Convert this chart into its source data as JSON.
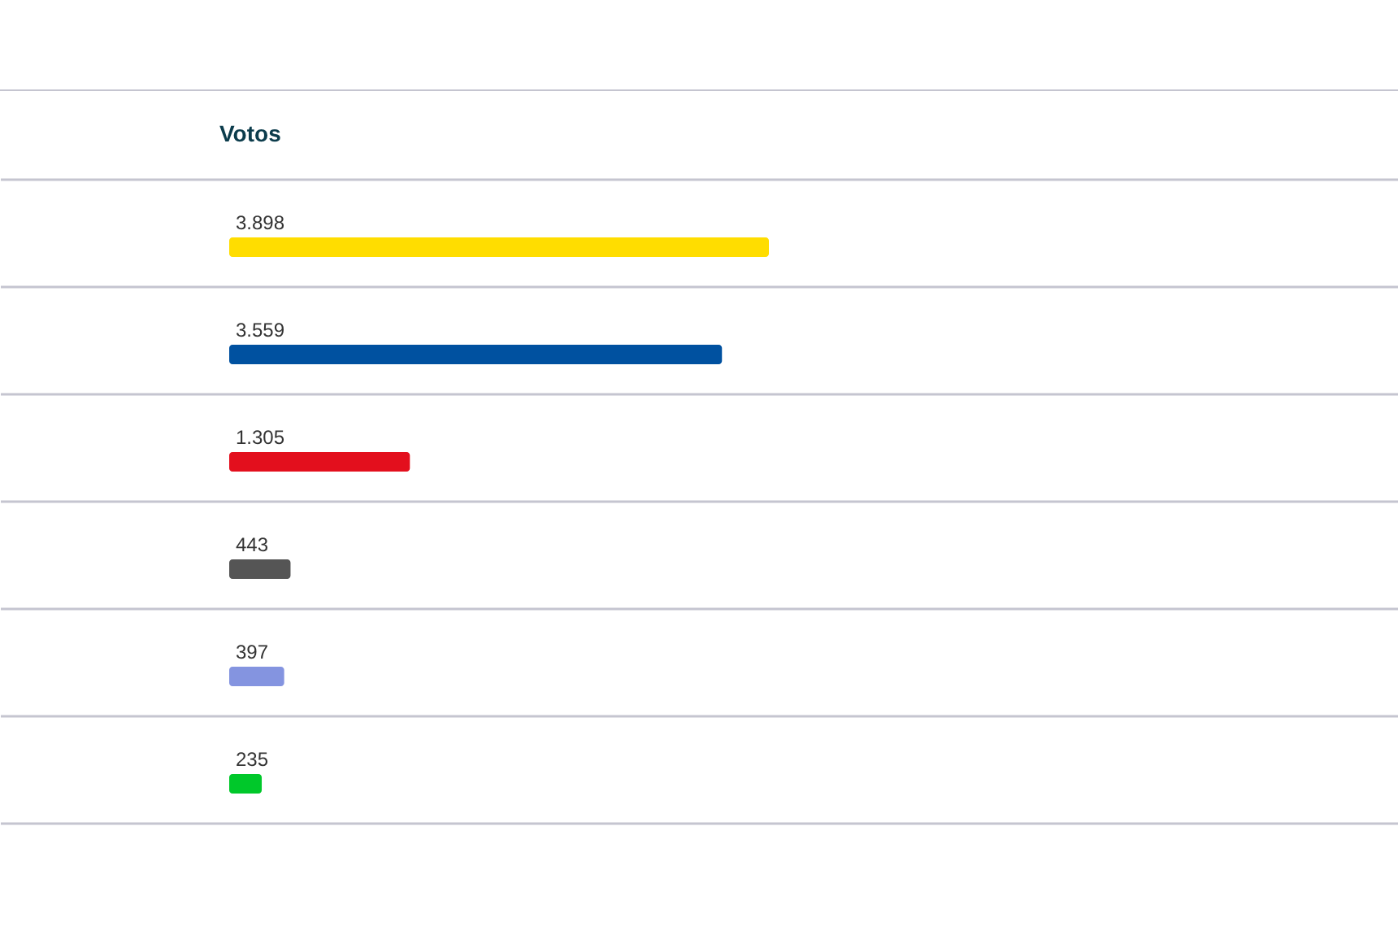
{
  "chart_data": {
    "type": "bar",
    "orientation": "horizontal",
    "title": "Votos",
    "categories": [
      null,
      null,
      null,
      null,
      null,
      null
    ],
    "values": [
      3898,
      3559,
      1305,
      443,
      397,
      235
    ],
    "colors": [
      "#ffdd00",
      "#0051a0",
      "#e30f1d",
      "#555555",
      "#8494e0",
      "#00c82a"
    ],
    "value_labels": [
      "3.898",
      "3.559",
      "1.305",
      "443",
      "397",
      "235"
    ],
    "grid": "y",
    "tick_labels": false
  }
}
